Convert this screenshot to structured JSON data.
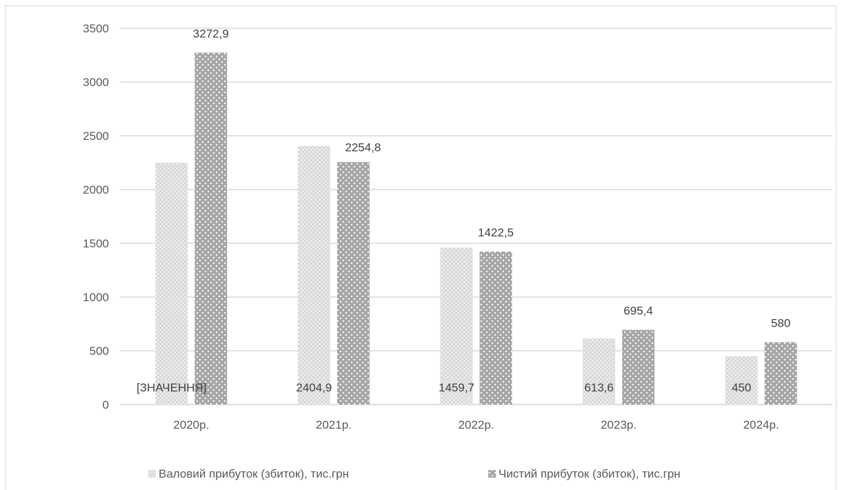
{
  "chart_data": {
    "type": "bar",
    "categories": [
      "2020р.",
      "2021р.",
      "2022р.",
      "2023р.",
      "2024р."
    ],
    "series": [
      {
        "name": "Валовий прибуток (збиток), тис.грн",
        "values": [
          2250,
          2404.9,
          1459.7,
          613.6,
          450
        ],
        "data_labels": [
          "[ЗНАЧЕННЯ]",
          "2404,9",
          "1459,7",
          "613,6",
          "450"
        ],
        "color": "#d9d9d9",
        "dot_color": "#ffffff"
      },
      {
        "name": "Чистий прибуток (збиток), тис.грн",
        "values": [
          3272.9,
          2254.8,
          1422.5,
          695.4,
          580
        ],
        "data_labels": [
          "3272,9",
          "2254,8",
          "1422,5",
          "695,4",
          "580"
        ],
        "color": "#a6a6a6",
        "dot_color": "#ffffff"
      }
    ],
    "ylim": [
      0,
      3500
    ],
    "yticks": [
      "0",
      "500",
      "1000",
      "1500",
      "2000",
      "2500",
      "3000",
      "3500"
    ],
    "ytick_values": [
      0,
      500,
      1000,
      1500,
      2000,
      2500,
      3000,
      3500
    ],
    "grid": true,
    "gridline_color": "#d9d9d9",
    "legend_position": "bottom"
  }
}
